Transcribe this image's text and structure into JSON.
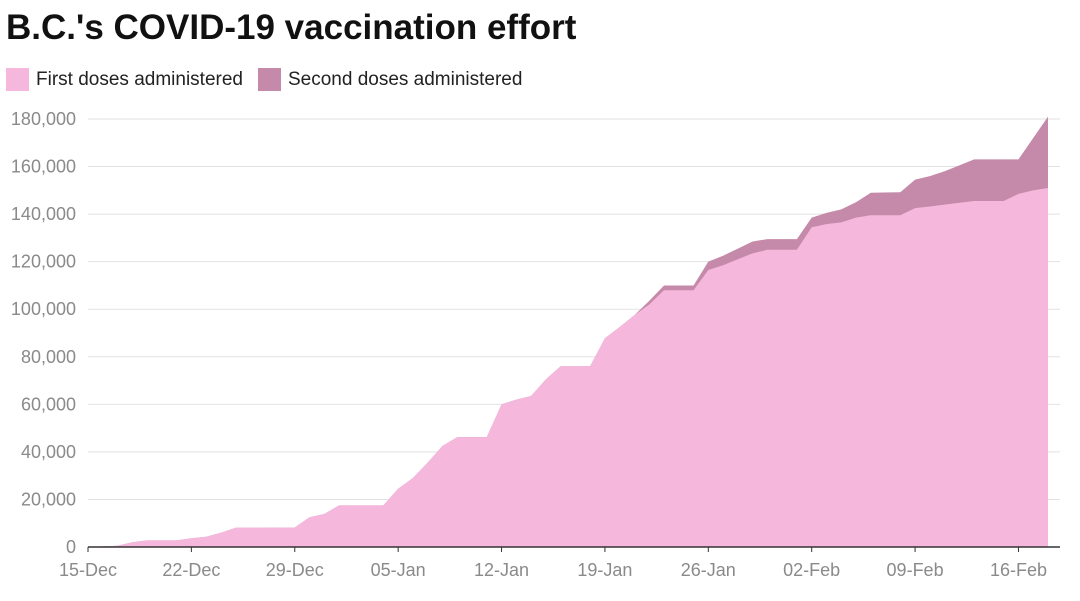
{
  "title": "B.C.'s COVID-19 vaccination effort",
  "colors": {
    "first": "#f5b8dc",
    "second": "#c58aa9",
    "grid": "#e2e2e2",
    "axis": "#333333",
    "tick_text": "#8a8a8a"
  },
  "chart_data": {
    "type": "area",
    "stacked": true,
    "title": "B.C.'s COVID-19 vaccination effort",
    "legend_position": "top-left",
    "grid": true,
    "x_start": "15-Dec",
    "x_end": "18-Feb",
    "x_tick_labels": [
      "15-Dec",
      "22-Dec",
      "29-Dec",
      "05-Jan",
      "12-Jan",
      "19-Jan",
      "26-Jan",
      "02-Feb",
      "09-Feb",
      "16-Feb"
    ],
    "ylim": [
      0,
      180000
    ],
    "y_tick_labels": [
      "0",
      "20,000",
      "40,000",
      "60,000",
      "80,000",
      "100,000",
      "120,000",
      "140,000",
      "160,000",
      "180,000"
    ],
    "series": [
      {
        "name": "First doses administered",
        "points": [
          [
            "15-Dec",
            0
          ],
          [
            "17-Dec",
            500
          ],
          [
            "18-Dec",
            2000
          ],
          [
            "19-Dec",
            2800
          ],
          [
            "21-Dec",
            2800
          ],
          [
            "22-Dec",
            3700
          ],
          [
            "23-Dec",
            4300
          ],
          [
            "24-Dec",
            6000
          ],
          [
            "25-Dec",
            8100
          ],
          [
            "27-Dec",
            8100
          ],
          [
            "29-Dec",
            8200
          ],
          [
            "30-Dec",
            12500
          ],
          [
            "31-Dec",
            13900
          ],
          [
            "01-Jan",
            17500
          ],
          [
            "04-Jan",
            17500
          ],
          [
            "05-Jan",
            24500
          ],
          [
            "06-Jan",
            29000
          ],
          [
            "07-Jan",
            35500
          ],
          [
            "08-Jan",
            42500
          ],
          [
            "09-Jan",
            46200
          ],
          [
            "11-Jan",
            46200
          ],
          [
            "12-Jan",
            60000
          ],
          [
            "13-Jan",
            62000
          ],
          [
            "14-Jan",
            63500
          ],
          [
            "15-Jan",
            70500
          ],
          [
            "16-Jan",
            76000
          ],
          [
            "18-Jan",
            76000
          ],
          [
            "19-Jan",
            87800
          ],
          [
            "20-Jan",
            92500
          ],
          [
            "21-Jan",
            97500
          ],
          [
            "22-Jan",
            102000
          ],
          [
            "23-Jan",
            108000
          ],
          [
            "25-Jan",
            108000
          ],
          [
            "26-Jan",
            116500
          ],
          [
            "27-Jan",
            118500
          ],
          [
            "28-Jan",
            121000
          ],
          [
            "29-Jan",
            123500
          ],
          [
            "30-Jan",
            125000
          ],
          [
            "01-Feb",
            125000
          ],
          [
            "02-Feb",
            134500
          ],
          [
            "03-Feb",
            135800
          ],
          [
            "04-Feb",
            136500
          ],
          [
            "05-Feb",
            138500
          ],
          [
            "06-Feb",
            139500
          ],
          [
            "08-Feb",
            139500
          ],
          [
            "09-Feb",
            142500
          ],
          [
            "10-Feb",
            143200
          ],
          [
            "11-Feb",
            144000
          ],
          [
            "12-Feb",
            144800
          ],
          [
            "13-Feb",
            145500
          ],
          [
            "15-Feb",
            145500
          ],
          [
            "16-Feb",
            148500
          ],
          [
            "17-Feb",
            150000
          ],
          [
            "18-Feb",
            151000
          ]
        ]
      },
      {
        "name": "Second doses administered",
        "points": [
          [
            "15-Dec",
            0
          ],
          [
            "17-Dec",
            500
          ],
          [
            "18-Dec",
            2000
          ],
          [
            "19-Dec",
            2800
          ],
          [
            "21-Dec",
            2800
          ],
          [
            "22-Dec",
            3700
          ],
          [
            "23-Dec",
            4300
          ],
          [
            "24-Dec",
            6000
          ],
          [
            "25-Dec",
            8100
          ],
          [
            "27-Dec",
            8100
          ],
          [
            "29-Dec",
            8200
          ],
          [
            "30-Dec",
            12500
          ],
          [
            "31-Dec",
            13900
          ],
          [
            "01-Jan",
            17500
          ],
          [
            "04-Jan",
            17500
          ],
          [
            "05-Jan",
            24500
          ],
          [
            "06-Jan",
            29000
          ],
          [
            "07-Jan",
            35500
          ],
          [
            "08-Jan",
            42500
          ],
          [
            "09-Jan",
            46200
          ],
          [
            "11-Jan",
            46200
          ],
          [
            "12-Jan",
            60000
          ],
          [
            "13-Jan",
            62000
          ],
          [
            "14-Jan",
            63500
          ],
          [
            "15-Jan",
            70500
          ],
          [
            "16-Jan",
            76000
          ],
          [
            "18-Jan",
            76000
          ],
          [
            "19-Jan",
            87800
          ],
          [
            "20-Jan",
            92500
          ],
          [
            "21-Jan",
            97500
          ],
          [
            "22-Jan",
            103500
          ],
          [
            "23-Jan",
            110000
          ],
          [
            "25-Jan",
            110000
          ],
          [
            "26-Jan",
            120000
          ],
          [
            "27-Jan",
            122500
          ],
          [
            "28-Jan",
            125500
          ],
          [
            "29-Jan",
            128500
          ],
          [
            "30-Jan",
            129500
          ],
          [
            "01-Feb",
            129500
          ],
          [
            "02-Feb",
            138500
          ],
          [
            "03-Feb",
            140500
          ],
          [
            "04-Feb",
            142000
          ],
          [
            "05-Feb",
            145000
          ],
          [
            "06-Feb",
            149000
          ],
          [
            "08-Feb",
            149200
          ],
          [
            "09-Feb",
            154500
          ],
          [
            "10-Feb",
            156000
          ],
          [
            "11-Feb",
            158000
          ],
          [
            "12-Feb",
            160500
          ],
          [
            "13-Feb",
            163000
          ],
          [
            "15-Feb",
            163000
          ],
          [
            "16-Feb",
            163000
          ],
          [
            "17-Feb",
            172000
          ],
          [
            "18-Feb",
            181000
          ]
        ]
      }
    ]
  }
}
